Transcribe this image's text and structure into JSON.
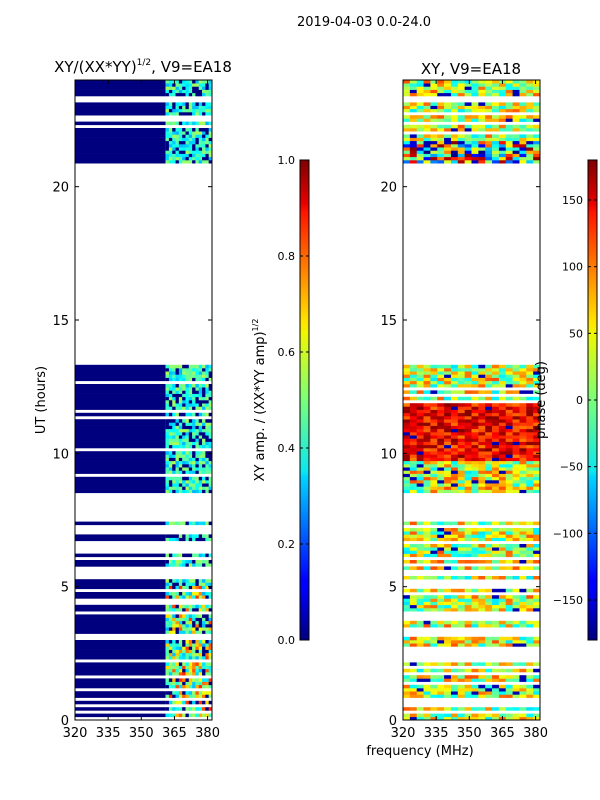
{
  "suptitle": "2019-04-03 0.0-24.0",
  "xlabel_shared": "frequency (MHz)",
  "colors": {
    "masked_blue": "#00007f",
    "background": "#ffffff",
    "axis": "#000000"
  },
  "chart_data": [
    {
      "type": "heatmap",
      "title": "XY/(XX*YY)1/2, V9=EA18",
      "title_main": "XY/(XX*YY)",
      "title_sup": "1/2",
      "title_rest": ", V9=EA18",
      "xlabel": "",
      "ylabel": "UT (hours)",
      "xlim": [
        320,
        382
      ],
      "ylim": [
        0,
        24
      ],
      "xticks": [
        320,
        335,
        350,
        365,
        380
      ],
      "yticks": [
        0,
        5,
        10,
        15,
        20
      ],
      "colormap": "jet",
      "data_gaps_hours": [
        [
          7.4,
          8.5
        ],
        [
          9.1,
          9.2
        ],
        [
          11.9,
          12.0
        ],
        [
          13.3,
          20.8
        ],
        [
          23.1,
          23.3
        ]
      ],
      "channel_band_mhz": [
        361,
        382
      ],
      "typical_value_range": [
        0.0,
        0.6
      ],
      "colorbar": {
        "label_main": "XY amp. / (XX*YY amp)",
        "label_sup": "1/2",
        "label": "XY amp. / (XX*YY amp)1/2",
        "range": [
          0.0,
          1.0
        ],
        "ticks": [
          0.0,
          0.2,
          0.4,
          0.6,
          0.8,
          1.0
        ],
        "tick_labels": [
          "0.0",
          "0.2",
          "0.4",
          "0.6",
          "0.8",
          "1.0"
        ]
      }
    },
    {
      "type": "heatmap",
      "title": "XY, V9=EA18",
      "xlabel": "",
      "ylabel": "",
      "xlim": [
        320,
        382
      ],
      "ylim": [
        0,
        24
      ],
      "xticks": [
        320,
        335,
        350,
        365,
        380
      ],
      "yticks": [
        0,
        5,
        10,
        15,
        20
      ],
      "colormap": "jet",
      "data_gaps_hours": [
        [
          7.4,
          8.5
        ],
        [
          13.3,
          20.8
        ],
        [
          23.1,
          23.3
        ]
      ],
      "typical_value_range": [
        -180,
        180
      ],
      "colorbar": {
        "label": "phase (deg)",
        "range": [
          -180,
          180
        ],
        "ticks": [
          -150,
          -100,
          -50,
          0,
          50,
          100,
          150
        ],
        "tick_labels": [
          "−150",
          "−100",
          "−50",
          "0",
          "50",
          "100",
          "150"
        ]
      }
    }
  ]
}
